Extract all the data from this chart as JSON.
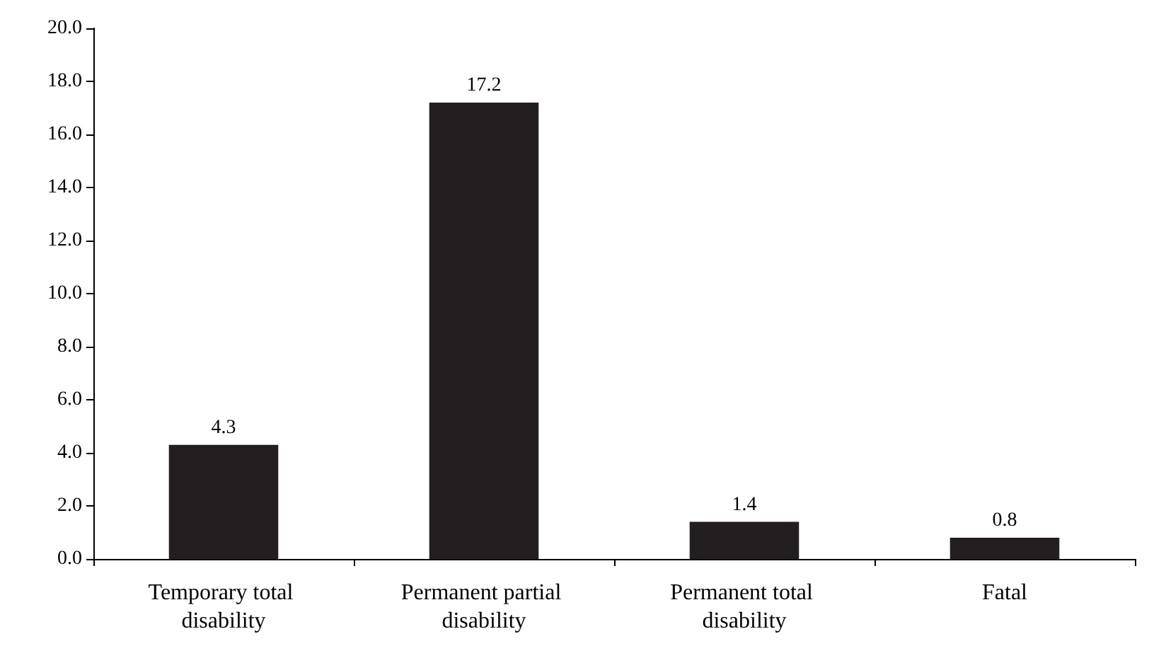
{
  "chart_data": {
    "type": "bar",
    "categories": [
      "Temporary total disability",
      "Permanent partial disability",
      "Permanent total disability",
      "Fatal"
    ],
    "values": [
      4.3,
      17.2,
      1.4,
      0.8
    ],
    "color": "#231f20",
    "ylim": [
      0,
      20
    ],
    "yticks": [
      {
        "value": 0,
        "label": "0.0"
      },
      {
        "value": 2,
        "label": "2.0"
      },
      {
        "value": 4,
        "label": "4.0"
      },
      {
        "value": 6,
        "label": "6.0"
      },
      {
        "value": 8,
        "label": "8.0"
      },
      {
        "value": 10,
        "label": "10.0"
      },
      {
        "value": 12,
        "label": "12.0"
      },
      {
        "value": 14,
        "label": "14.0"
      },
      {
        "value": 16,
        "label": "16.0"
      },
      {
        "value": 18,
        "label": "18.0"
      },
      {
        "value": 20,
        "label": "20.0"
      }
    ],
    "data_labels": true,
    "grid": false
  }
}
